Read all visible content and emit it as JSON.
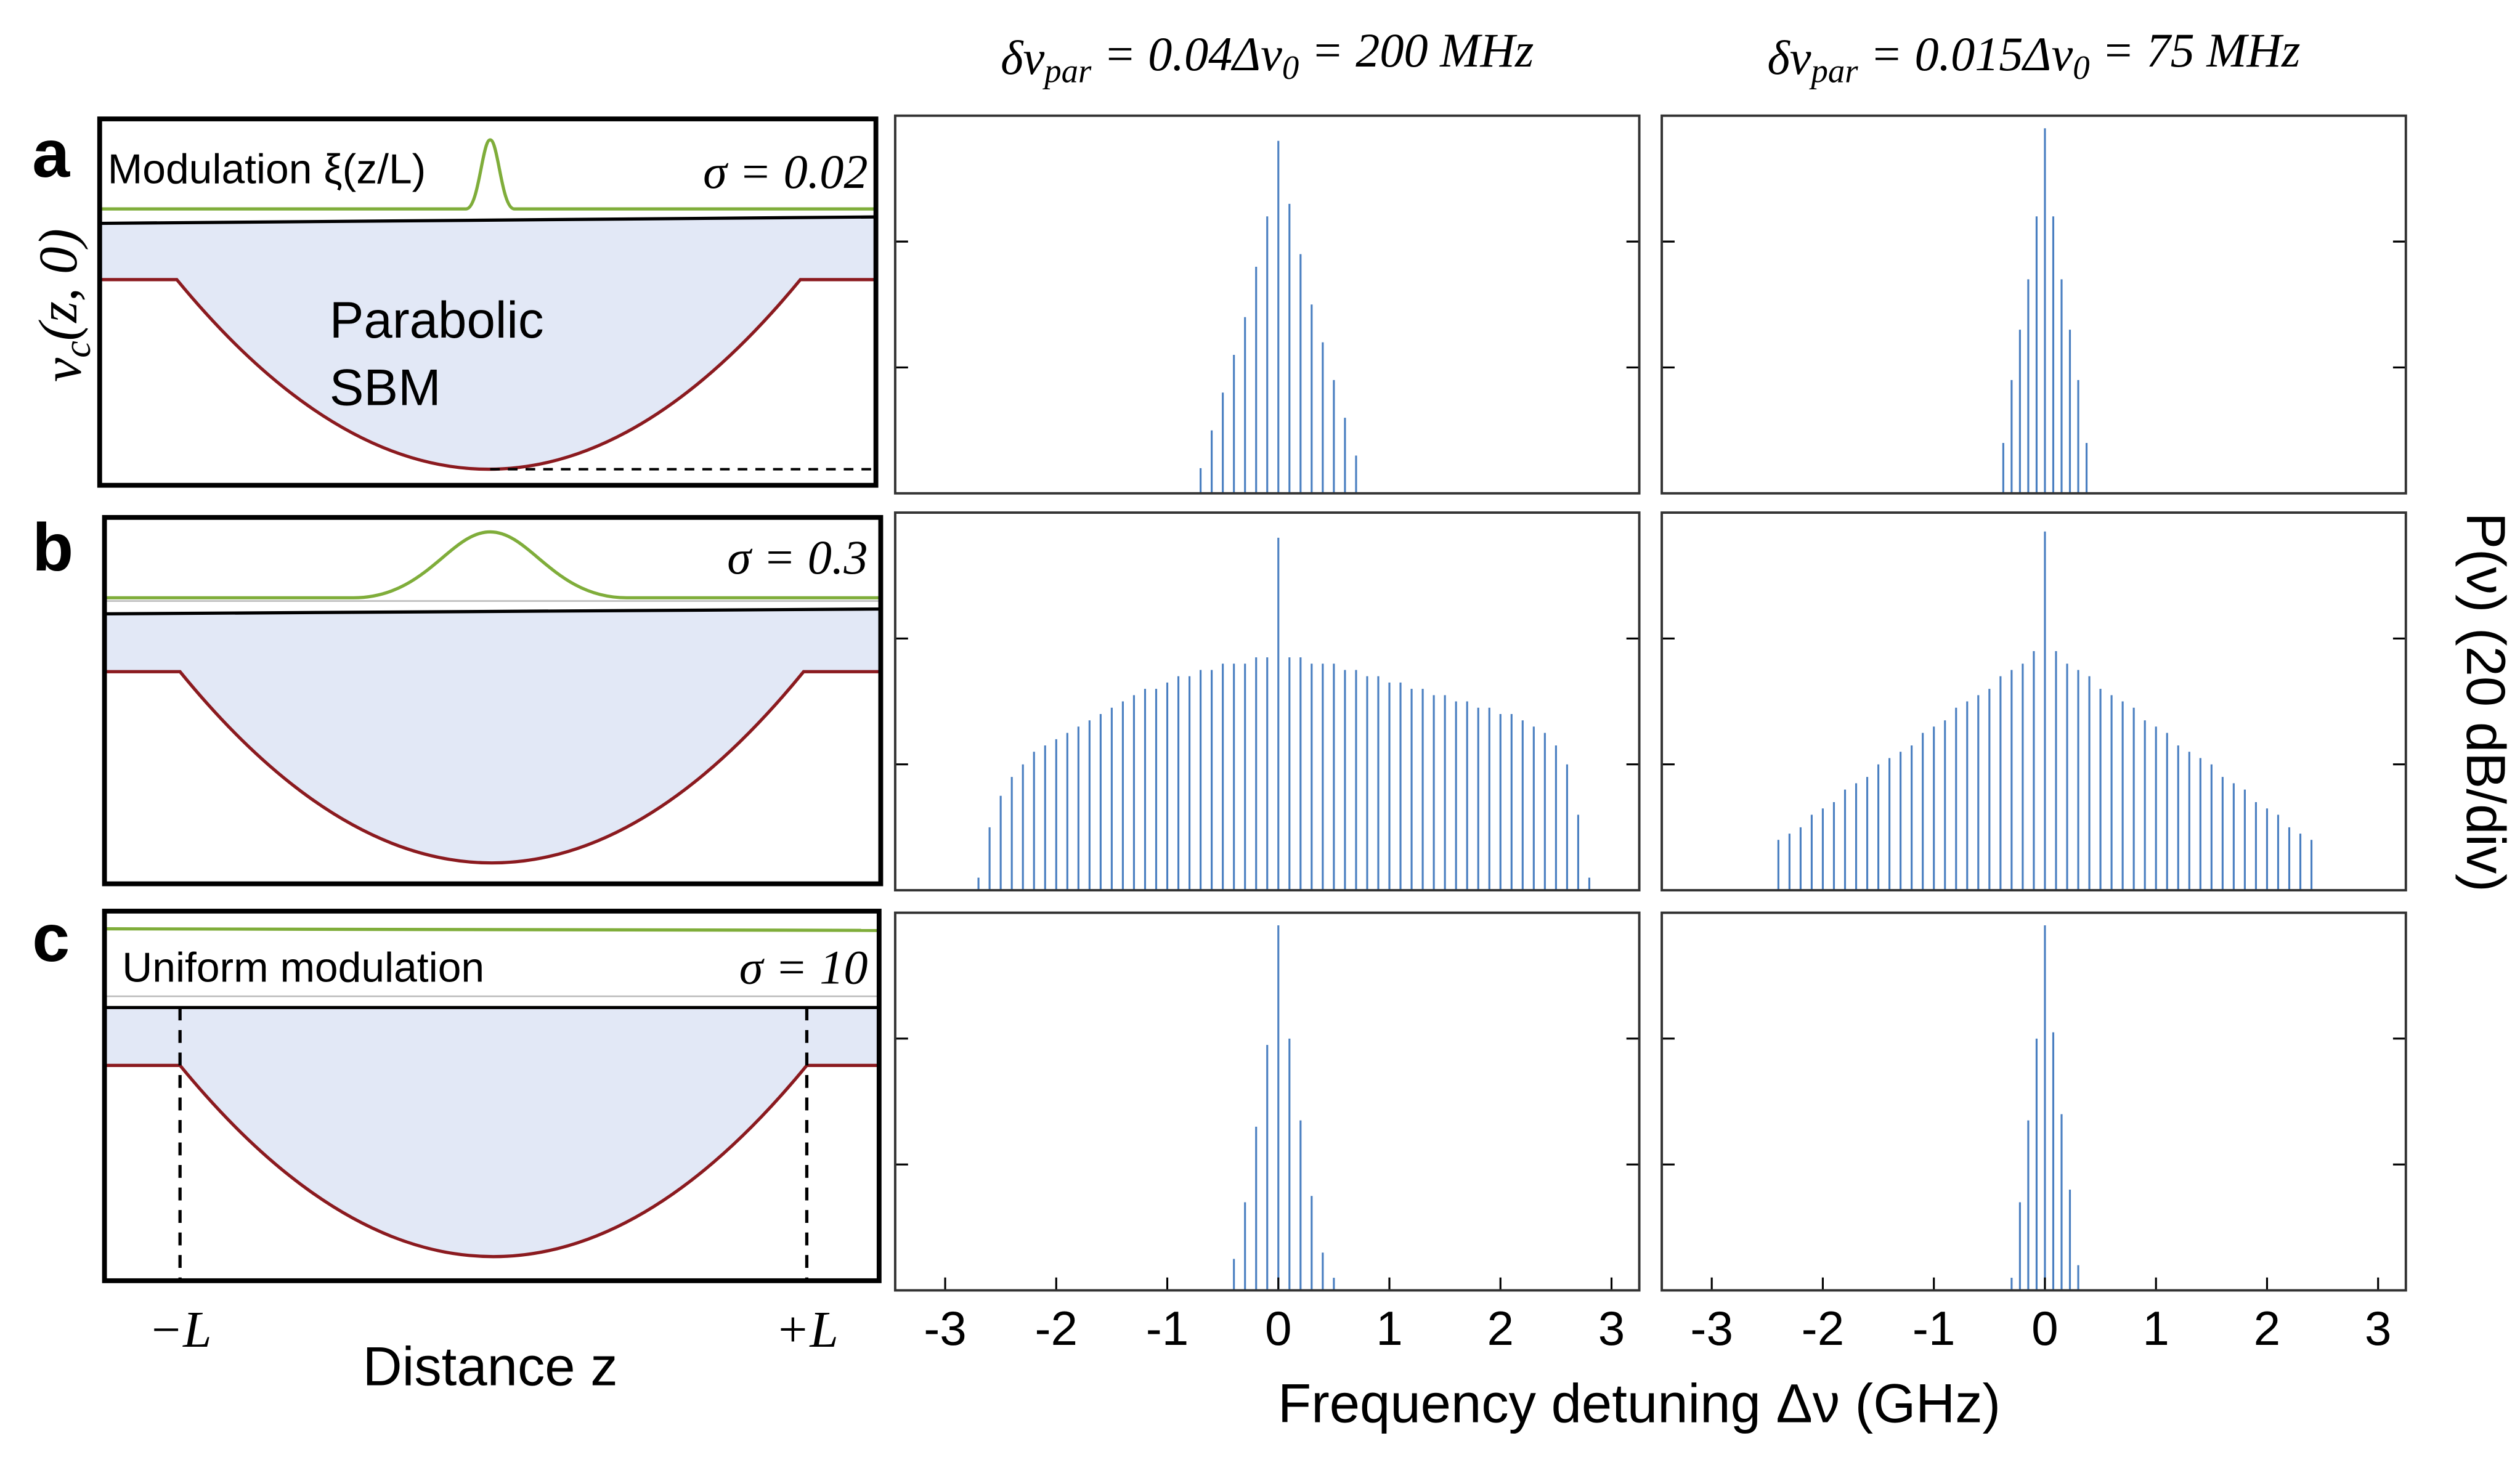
{
  "schematics": [
    {
      "label": "a",
      "texts": [
        "Modulation ξ(z/L)",
        "σ = 0.02",
        "Parabolic",
        "SBM"
      ]
    },
    {
      "label": "b",
      "texts": [
        "σ = 0.3"
      ]
    },
    {
      "label": "c",
      "texts": [
        "Uniform modulation",
        "σ = 10"
      ]
    }
  ],
  "schematic_ylabel": [
    "ν",
    "c",
    "(z, 0)"
  ],
  "schematic_xticks": [
    "−L",
    "+L"
  ],
  "schematic_xlabel": "Distance z",
  "xlabel": "Frequency detuning Δν (GHz)",
  "ylabel": "P(ν) (20 dB/div)",
  "chart_data": [
    {
      "type": "stem",
      "title": [
        "δν",
        "par",
        " = 0.04Δν",
        "0",
        " = 200 MHz"
      ],
      "color": "#4a7fc1",
      "x": [
        -0.7,
        -0.6,
        -0.5,
        -0.4,
        -0.3,
        -0.2,
        -0.1,
        0,
        0.1,
        0.2,
        0.3,
        0.4,
        0.5,
        0.6,
        0.7
      ],
      "values": [
        -56,
        -50,
        -44,
        -38,
        -32,
        -24,
        -16,
        -4,
        -14,
        -22,
        -30,
        -36,
        -42,
        -48,
        -54
      ],
      "xlim": [
        -3.45,
        3.25
      ],
      "ylim": [
        -60,
        0
      ],
      "yticks": [
        -40,
        -20
      ]
    },
    {
      "type": "stem",
      "title": [
        "δν",
        "par",
        " = 0.015Δν",
        "0",
        " = 75 MHz"
      ],
      "color": "#4a7fc1",
      "x": [
        -0.375,
        -0.3,
        -0.225,
        -0.15,
        -0.075,
        0,
        0.075,
        0.15,
        0.225,
        0.3,
        0.375
      ],
      "values": [
        -52,
        -42,
        -34,
        -26,
        -16,
        -2,
        -16,
        -26,
        -34,
        -42,
        -52
      ],
      "xlim": [
        -3.45,
        3.25
      ],
      "ylim": [
        -60,
        0
      ],
      "yticks": [
        -40,
        -20
      ]
    },
    {
      "type": "stem",
      "color": "#4a7fc1",
      "x": [
        -2.7,
        -2.6,
        -2.5,
        -2.4,
        -2.3,
        -2.2,
        -2.1,
        -2.0,
        -1.9,
        -1.8,
        -1.7,
        -1.6,
        -1.5,
        -1.4,
        -1.3,
        -1.2,
        -1.1,
        -1.0,
        -0.9,
        -0.8,
        -0.7,
        -0.6,
        -0.5,
        -0.4,
        -0.3,
        -0.2,
        -0.1,
        0,
        0.1,
        0.2,
        0.3,
        0.4,
        0.5,
        0.6,
        0.7,
        0.8,
        0.9,
        1.0,
        1.1,
        1.2,
        1.3,
        1.4,
        1.5,
        1.6,
        1.7,
        1.8,
        1.9,
        2.0,
        2.1,
        2.2,
        2.3,
        2.4,
        2.5,
        2.6,
        2.7,
        2.8
      ],
      "values": [
        -58,
        -50,
        -45,
        -42,
        -40,
        -38,
        -37,
        -36,
        -35,
        -34,
        -33,
        -32,
        -31,
        -30,
        -29,
        -28,
        -28,
        -27,
        -26,
        -26,
        -25,
        -25,
        -24,
        -24,
        -24,
        -23,
        -23,
        -4,
        -23,
        -23,
        -24,
        -24,
        -24,
        -25,
        -25,
        -26,
        -26,
        -27,
        -27,
        -28,
        -28,
        -29,
        -29,
        -30,
        -30,
        -31,
        -31,
        -32,
        -32,
        -33,
        -34,
        -35,
        -37,
        -40,
        -48,
        -58
      ],
      "xlim": [
        -3.45,
        3.25
      ],
      "ylim": [
        -60,
        0
      ],
      "yticks": [
        -40,
        -20
      ]
    },
    {
      "type": "stem",
      "color": "#4a7fc1",
      "x": [
        -2.4,
        -2.3,
        -2.2,
        -2.1,
        -2.0,
        -1.9,
        -1.8,
        -1.7,
        -1.6,
        -1.5,
        -1.4,
        -1.3,
        -1.2,
        -1.1,
        -1.0,
        -0.9,
        -0.8,
        -0.7,
        -0.6,
        -0.5,
        -0.4,
        -0.3,
        -0.2,
        -0.1,
        0,
        0.1,
        0.2,
        0.3,
        0.4,
        0.5,
        0.6,
        0.7,
        0.8,
        0.9,
        1.0,
        1.1,
        1.2,
        1.3,
        1.4,
        1.5,
        1.6,
        1.7,
        1.8,
        1.9,
        2.0,
        2.1,
        2.2,
        2.3,
        2.4
      ],
      "values": [
        -52,
        -51,
        -50,
        -48,
        -47,
        -46,
        -44,
        -43,
        -42,
        -40,
        -39,
        -38,
        -37,
        -35,
        -34,
        -33,
        -31,
        -30,
        -29,
        -28,
        -26,
        -25,
        -24,
        -22,
        -3,
        -22,
        -24,
        -25,
        -26,
        -28,
        -29,
        -30,
        -31,
        -33,
        -34,
        -35,
        -37,
        -38,
        -39,
        -40,
        -42,
        -43,
        -44,
        -46,
        -47,
        -48,
        -50,
        -51,
        -52
      ],
      "xlim": [
        -3.45,
        3.25
      ],
      "ylim": [
        -60,
        0
      ],
      "yticks": [
        -40,
        -20
      ]
    },
    {
      "type": "stem",
      "color": "#4a7fc1",
      "x": [
        -0.4,
        -0.3,
        -0.2,
        -0.1,
        0,
        0.1,
        0.2,
        0.3,
        0.4,
        0.5
      ],
      "values": [
        -55,
        -46,
        -34,
        -21,
        -2,
        -20,
        -33,
        -45,
        -54,
        -58
      ],
      "xlim": [
        -3.45,
        3.25
      ],
      "ylim": [
        -60,
        0
      ],
      "yticks": [
        -40,
        -20
      ],
      "xticks": [
        -3,
        -2,
        -1,
        0,
        1,
        2,
        3
      ]
    },
    {
      "type": "stem",
      "color": "#4a7fc1",
      "x": [
        -0.3,
        -0.225,
        -0.15,
        -0.075,
        0,
        0.075,
        0.15,
        0.225,
        0.3
      ],
      "values": [
        -58,
        -46,
        -33,
        -20,
        -2,
        -19,
        -32,
        -44,
        -56
      ],
      "xlim": [
        -3.45,
        3.25
      ],
      "ylim": [
        -60,
        0
      ],
      "yticks": [
        -40,
        -20
      ],
      "xticks": [
        -3,
        -2,
        -1,
        0,
        1,
        2,
        3
      ]
    }
  ]
}
